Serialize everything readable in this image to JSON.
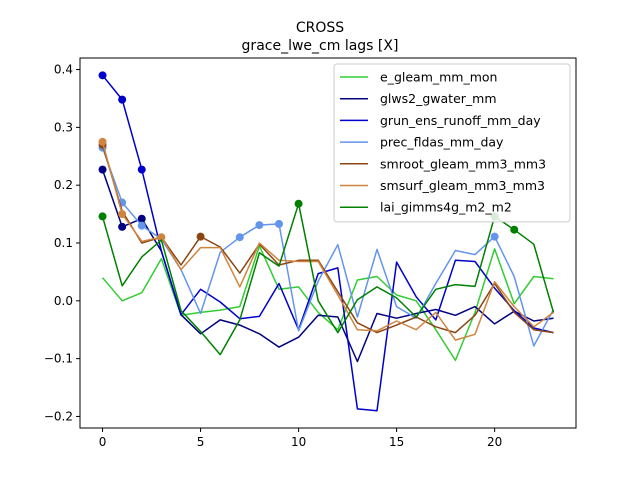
{
  "chart_data": {
    "type": "line",
    "title": "CROSS",
    "subtitle": "grace_lwe_cm lags [X]",
    "xlabel": "",
    "ylabel": "",
    "xlim": [
      -1.15,
      24.15
    ],
    "ylim": [
      -0.22,
      0.42
    ],
    "xticks": [
      0,
      5,
      10,
      15,
      20
    ],
    "yticks": [
      -0.2,
      -0.1,
      0.0,
      0.1,
      0.2,
      0.3,
      0.4
    ],
    "ytick_labels": [
      "−0.2",
      "−0.1",
      "0.0",
      "0.1",
      "0.2",
      "0.3",
      "0.4"
    ],
    "legend_position": "top-right",
    "x": [
      0,
      1,
      2,
      3,
      4,
      5,
      6,
      7,
      8,
      9,
      10,
      11,
      12,
      13,
      14,
      15,
      16,
      17,
      18,
      19,
      20,
      21,
      22,
      23
    ],
    "series": [
      {
        "name": "e_gleam_mm_mon",
        "color": "#32cd32",
        "values": [
          0.04,
          0.0,
          0.014,
          0.073,
          -0.025,
          -0.02,
          -0.016,
          -0.01,
          0.095,
          0.02,
          0.024,
          -0.02,
          -0.05,
          0.036,
          0.042,
          0.01,
          0.0,
          -0.05,
          -0.103,
          -0.02,
          0.09,
          -0.005,
          0.042,
          0.038
        ],
        "markers": []
      },
      {
        "name": "glws2_gwater_mm",
        "color": "#000080",
        "values": [
          0.227,
          0.128,
          0.142,
          0.086,
          -0.024,
          -0.057,
          -0.033,
          -0.042,
          -0.057,
          -0.08,
          -0.063,
          -0.025,
          -0.028,
          -0.105,
          -0.022,
          -0.03,
          -0.022,
          -0.015,
          -0.025,
          -0.01,
          -0.04,
          -0.018,
          -0.035,
          -0.03
        ],
        "markers": [
          0,
          1,
          2
        ]
      },
      {
        "name": "grun_ens_runoff_mm_day",
        "color": "#0000cd",
        "values": [
          0.39,
          0.348,
          0.227,
          0.086,
          -0.024,
          0.02,
          -0.002,
          -0.031,
          -0.027,
          0.03,
          -0.05,
          0.047,
          0.057,
          -0.187,
          -0.19,
          0.067,
          0.007,
          -0.033,
          0.07,
          0.068,
          0.022,
          -0.017,
          -0.047,
          -0.055
        ],
        "markers": [
          0,
          1,
          2
        ]
      },
      {
        "name": "prec_fldas_mm_day",
        "color": "#6495ed",
        "values": [
          0.265,
          0.17,
          0.13,
          0.107,
          0.054,
          -0.022,
          0.084,
          0.11,
          0.131,
          0.133,
          -0.052,
          0.034,
          0.097,
          -0.028,
          0.089,
          -0.01,
          -0.03,
          0.03,
          0.087,
          0.08,
          0.111,
          0.042,
          -0.078,
          -0.015
        ],
        "markers": [
          0,
          1,
          2,
          7,
          8,
          9,
          20
        ]
      },
      {
        "name": "smroot_gleam_mm3_mm3",
        "color": "#8b4513",
        "values": [
          0.27,
          0.155,
          0.1,
          0.11,
          0.062,
          0.111,
          0.093,
          0.048,
          0.098,
          0.062,
          0.07,
          0.07,
          0.016,
          -0.038,
          -0.055,
          -0.042,
          -0.028,
          -0.045,
          -0.055,
          -0.025,
          0.03,
          -0.02,
          -0.05,
          -0.055
        ],
        "markers": [
          0,
          5
        ]
      },
      {
        "name": "smsurf_gleam_mm3_mm3",
        "color": "#cd853f",
        "values": [
          0.275,
          0.15,
          0.103,
          0.11,
          0.054,
          0.092,
          0.092,
          0.024,
          0.1,
          0.07,
          0.068,
          0.068,
          0.01,
          -0.05,
          -0.052,
          -0.035,
          -0.05,
          -0.02,
          -0.068,
          -0.058,
          0.033,
          -0.01,
          -0.045,
          -0.02
        ],
        "markers": [
          0,
          1,
          3
        ]
      },
      {
        "name": "lai_gimms4g_m2_m2",
        "color": "#008000",
        "values": [
          0.146,
          0.026,
          0.076,
          0.105,
          -0.017,
          -0.053,
          -0.093,
          -0.033,
          0.083,
          0.06,
          0.168,
          0.0,
          -0.055,
          0.002,
          0.024,
          0.005,
          -0.028,
          0.02,
          0.028,
          0.025,
          0.146,
          0.123,
          0.098,
          -0.02
        ],
        "markers": [
          0,
          10,
          20,
          21
        ]
      }
    ]
  }
}
